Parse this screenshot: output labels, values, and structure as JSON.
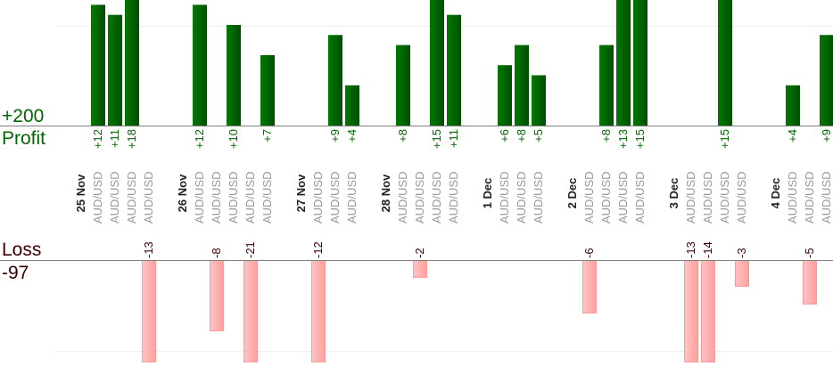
{
  "summary": {
    "profit_total": "+200",
    "profit_label": "Profit",
    "loss_label": "Loss",
    "loss_total": "-97"
  },
  "colors": {
    "profit_bar": "#006400",
    "profit_text": "#006600",
    "loss_bar": "#ffb3b3",
    "loss_border": "#ff9a9a",
    "loss_text": "#3a0000",
    "symbol_text": "#999999",
    "date_text": "#222222"
  },
  "chart_data": {
    "type": "bar",
    "title": "",
    "xlabel": "",
    "ylabel": "",
    "profit_axis": {
      "gridline": 10,
      "visible_max": 12.4
    },
    "loss_axis": {
      "gridline": -10,
      "visible_min": -11.5
    },
    "days": [
      {
        "date": "25 Nov",
        "trades": [
          {
            "symbol": "AUD/USD",
            "value": 12,
            "label": "+12"
          },
          {
            "symbol": "AUD/USD",
            "value": 11,
            "label": "+11"
          },
          {
            "symbol": "AUD/USD",
            "value": 18,
            "label": "+18"
          },
          {
            "symbol": "AUD/USD",
            "value": -13,
            "label": "-13"
          }
        ]
      },
      {
        "date": "26 Nov",
        "trades": [
          {
            "symbol": "AUD/USD",
            "value": 12,
            "label": "+12"
          },
          {
            "symbol": "AUD/USD",
            "value": -8,
            "label": "-8"
          },
          {
            "symbol": "AUD/USD",
            "value": 10,
            "label": "+10"
          },
          {
            "symbol": "AUD/USD",
            "value": -21,
            "label": "-21"
          },
          {
            "symbol": "AUD/USD",
            "value": 7,
            "label": "+7"
          }
        ]
      },
      {
        "date": "27 Nov",
        "trades": [
          {
            "symbol": "AUD/USD",
            "value": -12,
            "label": "-12"
          },
          {
            "symbol": "AUD/USD",
            "value": 9,
            "label": "+9"
          },
          {
            "symbol": "AUD/USD",
            "value": 4,
            "label": "+4"
          }
        ]
      },
      {
        "date": "28 Nov",
        "trades": [
          {
            "symbol": "AUD/USD",
            "value": 8,
            "label": "+8"
          },
          {
            "symbol": "AUD/USD",
            "value": -2,
            "label": "-2"
          },
          {
            "symbol": "AUD/USD",
            "value": 15,
            "label": "+15"
          },
          {
            "symbol": "AUD/USD",
            "value": 11,
            "label": "+11"
          }
        ]
      },
      {
        "date": "1 Dec",
        "trades": [
          {
            "symbol": "AUD/USD",
            "value": 6,
            "label": "+6"
          },
          {
            "symbol": "AUD/USD",
            "value": 8,
            "label": "+8"
          },
          {
            "symbol": "AUD/USD",
            "value": 5,
            "label": "+5"
          }
        ]
      },
      {
        "date": "2 Dec",
        "trades": [
          {
            "symbol": "AUD/USD",
            "value": -6,
            "label": "-6"
          },
          {
            "symbol": "AUD/USD",
            "value": 8,
            "label": "+8"
          },
          {
            "symbol": "AUD/USD",
            "value": 13,
            "label": "+13"
          },
          {
            "symbol": "AUD/USD",
            "value": 15,
            "label": "+15"
          }
        ]
      },
      {
        "date": "3 Dec",
        "trades": [
          {
            "symbol": "AUD/USD",
            "value": -13,
            "label": "-13"
          },
          {
            "symbol": "AUD/USD",
            "value": -14,
            "label": "-14"
          },
          {
            "symbol": "AUD/USD",
            "value": 15,
            "label": "+15"
          },
          {
            "symbol": "AUD/USD",
            "value": -3,
            "label": "-3"
          }
        ]
      },
      {
        "date": "4 Dec",
        "trades": [
          {
            "symbol": "AUD/USD",
            "value": 4,
            "label": "+4"
          },
          {
            "symbol": "AUD/USD",
            "value": -5,
            "label": "-5"
          },
          {
            "symbol": "AUD/USD",
            "value": 9,
            "label": "+9"
          }
        ]
      }
    ]
  }
}
